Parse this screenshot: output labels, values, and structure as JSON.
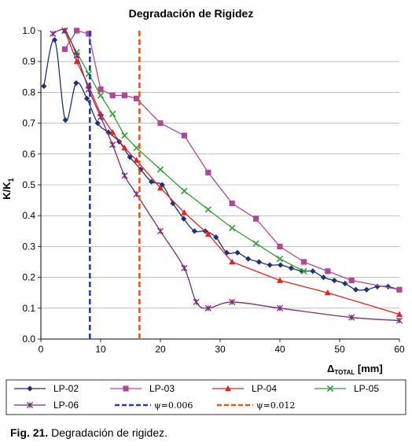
{
  "caption": {
    "fig_label": "Fig. 21.",
    "text": "Degradación de rigidez."
  },
  "chart_data": {
    "type": "line",
    "title": "Degradación de Rigidez",
    "ylabel_main": "K/K",
    "ylabel_sub": "1",
    "xlabel_prefix": "Δ",
    "xlabel_sub": "TOTAL",
    "xlabel_suffix": " [mm]",
    "xlim": [
      0,
      60
    ],
    "ylim": [
      0,
      1.0
    ],
    "xticks": [
      "0",
      "10",
      "20",
      "30",
      "40",
      "50",
      "60"
    ],
    "yticks": [
      "0.0",
      "0.1",
      "0.2",
      "0.3",
      "0.4",
      "0.5",
      "0.6",
      "0.7",
      "0.8",
      "0.9",
      "1.0"
    ],
    "grid": "horizontal",
    "legend_position": "bottom",
    "series": [
      {
        "name": "LP-02",
        "color": "#1f2f7a",
        "marker": "diamond",
        "smooth": true,
        "x": [
          0.5,
          2.3,
          4.1,
          5.9,
          7.7,
          9.5,
          11.3,
          13.1,
          14.9,
          16.7,
          18.5,
          20.3,
          22.1,
          23.9,
          25.7,
          27.5,
          29.3,
          31.1,
          32.9,
          34.7,
          36.5,
          38.3,
          40.1,
          41.9,
          43.7,
          45.5,
          47.3,
          49.1,
          50.9,
          52.7,
          54.5,
          56.3,
          58.1,
          59.9
        ],
        "y": [
          0.82,
          0.97,
          0.71,
          0.83,
          0.78,
          0.7,
          0.67,
          0.64,
          0.59,
          0.55,
          0.51,
          0.5,
          0.44,
          0.39,
          0.35,
          0.35,
          0.33,
          0.28,
          0.28,
          0.26,
          0.25,
          0.24,
          0.24,
          0.23,
          0.22,
          0.22,
          0.2,
          0.19,
          0.18,
          0.16,
          0.16,
          0.17,
          0.17,
          0.16
        ]
      },
      {
        "name": "LP-03",
        "color": "#b0479a",
        "marker": "square",
        "smooth": false,
        "x": [
          4,
          6,
          8,
          10,
          12,
          14,
          16,
          20,
          24,
          28,
          32,
          36,
          40,
          44,
          48,
          52,
          60
        ],
        "y": [
          0.94,
          1.0,
          0.99,
          0.81,
          0.79,
          0.79,
          0.78,
          0.7,
          0.66,
          0.54,
          0.44,
          0.39,
          0.3,
          0.25,
          0.22,
          0.19,
          0.16
        ]
      },
      {
        "name": "LP-04",
        "color": "#e8201a",
        "marker": "triangle",
        "smooth": false,
        "x": [
          4,
          6,
          8,
          10,
          12,
          14,
          16,
          20,
          24,
          28,
          32,
          40,
          48,
          60
        ],
        "y": [
          1.0,
          0.9,
          0.82,
          0.73,
          0.67,
          0.62,
          0.58,
          0.49,
          0.41,
          0.34,
          0.25,
          0.19,
          0.15,
          0.08
        ]
      },
      {
        "name": "LP-05",
        "color": "#2fa02f",
        "marker": "x",
        "smooth": false,
        "x": [
          4,
          6,
          8,
          10,
          12,
          14,
          16,
          20,
          24,
          28,
          32,
          36,
          40,
          44
        ],
        "y": [
          1.0,
          0.93,
          0.86,
          0.79,
          0.73,
          0.66,
          0.62,
          0.55,
          0.48,
          0.42,
          0.36,
          0.31,
          0.26,
          0.22
        ]
      },
      {
        "name": "LP-06",
        "color": "#7b2a7b",
        "marker": "star",
        "smooth": true,
        "x": [
          2,
          4,
          6,
          8,
          10,
          12,
          14,
          16,
          20,
          24,
          26,
          28,
          32,
          40,
          52,
          60
        ],
        "y": [
          0.99,
          1.0,
          0.92,
          0.81,
          0.72,
          0.63,
          0.53,
          0.47,
          0.35,
          0.23,
          0.12,
          0.1,
          0.12,
          0.1,
          0.07,
          0.06
        ]
      },
      {
        "name": "ψ=0.006",
        "color": "#1f3fbf",
        "dashed": true,
        "vline": 8.2
      },
      {
        "name": "ψ=0.012",
        "color": "#e8571a",
        "dashed": true,
        "vline": 16.5
      }
    ]
  }
}
